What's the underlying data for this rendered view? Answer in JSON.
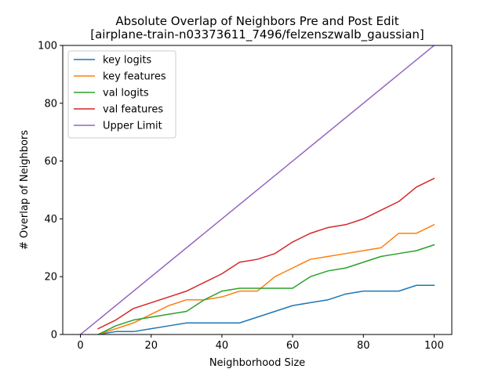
{
  "chart_data": {
    "type": "line",
    "title": "Absolute Overlap of Neighbors Pre and Post Edit",
    "subtitle": "[airplane-train-n03373611_7496/felzenszwalb_gaussian]",
    "xlabel": "Neighborhood Size",
    "ylabel": "# Overlap of Neighbors",
    "xlim": [
      -5,
      105
    ],
    "ylim": [
      0,
      100
    ],
    "xticks": [
      0,
      20,
      40,
      60,
      80,
      100
    ],
    "yticks": [
      0,
      20,
      40,
      60,
      80,
      100
    ],
    "grid": false,
    "legend_position": "top-left",
    "x": [
      5,
      10,
      15,
      20,
      25,
      30,
      35,
      40,
      45,
      50,
      55,
      60,
      65,
      70,
      75,
      80,
      85,
      90,
      95,
      100
    ],
    "series": [
      {
        "name": "key logits",
        "color": "#1f77b4",
        "values": [
          0,
          1,
          1,
          2,
          3,
          4,
          4,
          4,
          4,
          6,
          8,
          10,
          11,
          12,
          14,
          15,
          15,
          15,
          17,
          17
        ]
      },
      {
        "name": "key features",
        "color": "#ff7f0e",
        "values": [
          0,
          2,
          4,
          7,
          10,
          12,
          12,
          13,
          15,
          15,
          20,
          23,
          26,
          27,
          28,
          29,
          30,
          35,
          35,
          38
        ]
      },
      {
        "name": "val logits",
        "color": "#2ca02c",
        "values": [
          0,
          3,
          5,
          6,
          7,
          8,
          12,
          15,
          16,
          16,
          16,
          16,
          20,
          22,
          23,
          25,
          27,
          28,
          29,
          31
        ]
      },
      {
        "name": "val features",
        "color": "#d62728",
        "values": [
          2,
          5,
          9,
          11,
          13,
          15,
          18,
          21,
          25,
          26,
          28,
          32,
          35,
          37,
          38,
          40,
          43,
          46,
          51,
          54
        ]
      },
      {
        "name": "Upper Limit",
        "color": "#9467bd",
        "x": [
          0,
          100
        ],
        "values": [
          0,
          100
        ]
      }
    ]
  }
}
